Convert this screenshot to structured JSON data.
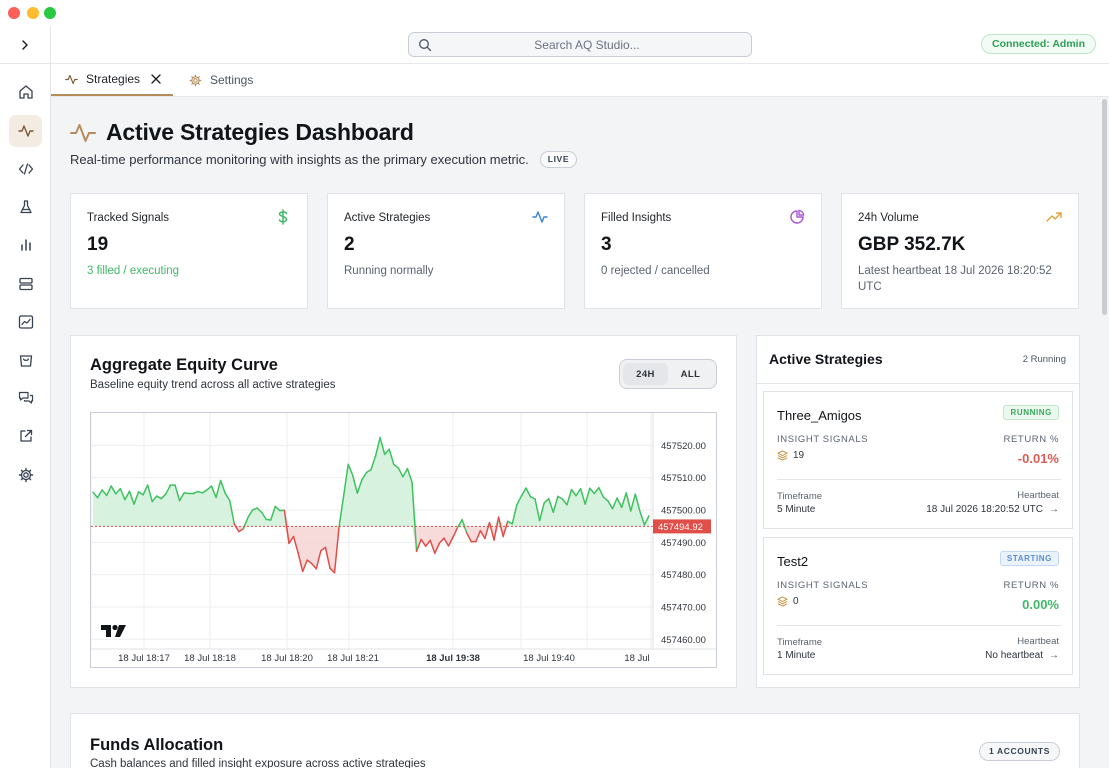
{
  "header": {
    "search_placeholder": "Search AQ Studio...",
    "connection_status": "Connected: Admin"
  },
  "sidebar": {
    "items": [
      {
        "icon": "home-icon"
      },
      {
        "icon": "activity-icon",
        "active": true
      },
      {
        "icon": "code-icon"
      },
      {
        "icon": "flask-icon"
      },
      {
        "icon": "bar-chart-icon"
      },
      {
        "icon": "server-icon"
      },
      {
        "icon": "line-chart-icon"
      },
      {
        "icon": "shopping-bag-icon"
      },
      {
        "icon": "messages-icon"
      },
      {
        "icon": "external-link-icon"
      },
      {
        "icon": "gear-icon"
      }
    ]
  },
  "tabs": [
    {
      "label": "Strategies",
      "active": true,
      "closable": true
    },
    {
      "label": "Settings",
      "active": false
    }
  ],
  "page": {
    "title": "Active Strategies Dashboard",
    "subtitle": "Real-time performance monitoring with insights as the primary execution metric.",
    "live_badge": "LIVE"
  },
  "stats": [
    {
      "label": "Tracked Signals",
      "value": "19",
      "sub": "3 filled / executing",
      "sub_color": "#3fb868",
      "icon": "dollar-icon"
    },
    {
      "label": "Active Strategies",
      "value": "2",
      "sub": "Running normally",
      "icon": "activity-icon"
    },
    {
      "label": "Filled Insights",
      "value": "3",
      "sub": "0 rejected / cancelled",
      "icon": "pie-chart-icon"
    },
    {
      "label": "24h Volume",
      "value": "GBP 352.7K",
      "sub": "Latest heartbeat 18 Jul 2026 18:20:52 UTC",
      "icon": "trending-up-icon"
    }
  ],
  "equity": {
    "title": "Aggregate Equity Curve",
    "description": "Baseline equity trend across all active strategies",
    "range_options": [
      "24H",
      "ALL"
    ],
    "selected_range": "24H"
  },
  "chart_data": {
    "type": "area",
    "baseline": 457494.92,
    "last_price_label": "457494.92",
    "ylim": [
      457457,
      457530
    ],
    "y_ticks": [
      "457520.00",
      "457510.00",
      "457500.00",
      "457490.00",
      "457480.00",
      "457470.00",
      "457460.00"
    ],
    "x_tick_labels": [
      "18 Jul 18:17",
      "18 Jul 18:18",
      "18 Jul 18:20",
      "18 Jul 18:21",
      "18 Jul 19:38",
      "18 Jul 19:40",
      "18 Jul"
    ],
    "x_tick_bold": "18 Jul 19:38",
    "colors": {
      "below": "#e04e4a",
      "above": "#3ec25f",
      "fill_below": "#f6d3d3",
      "fill_above": "#d3f1da"
    },
    "values": [
      457505.5,
      457503.8,
      457506.2,
      457504.5,
      457507.4,
      457505.0,
      457506.6,
      457503.2,
      457505.8,
      457501.8,
      457505.6,
      457504.7,
      457507.7,
      457502.6,
      457504.3,
      457503.5,
      457505.0,
      457507.7,
      457507.7,
      457502.9,
      457505.3,
      457505.1,
      457505.1,
      457505.7,
      457505.3,
      457506.2,
      457507.4,
      457503.9,
      457509.1,
      457505.2,
      457502.9,
      457495.7,
      457493.3,
      457494.2,
      457497.7,
      457500.0,
      457500.6,
      457499.3,
      457497.1,
      457496.9,
      457501.1,
      457499.8,
      457499.9,
      457489.7,
      457491.8,
      457486.8,
      457481.0,
      457484.5,
      457483.4,
      457481.8,
      457487.4,
      457488.4,
      457482.0,
      457480.6,
      457494.9,
      457504.4,
      457514.1,
      457510.7,
      457505.2,
      457509.3,
      457511.6,
      457512.5,
      457516.7,
      457522.4,
      457517.2,
      457518.8,
      457514.1,
      457513.0,
      457510.3,
      457512.8,
      457508.6,
      457487.2,
      457490.9,
      457488.8,
      457490.6,
      457486.6,
      457489.7,
      457491.3,
      457488.9,
      457491.6,
      457494.6,
      457497.0,
      457492.9,
      457490.2,
      457490.2,
      457493.6,
      457491.2,
      457496.1,
      457490.7,
      457497.8,
      457491.8,
      457496.5,
      457495.7,
      457501.6,
      457504.3,
      457506.8,
      457504.1,
      457503.4,
      457496.7,
      457502.2,
      457503.5,
      457499.3,
      457504.2,
      457503.4,
      457501.6,
      457506.3,
      457504.4,
      457506.6,
      457501.8,
      457506.7,
      457505.1,
      457506.9,
      457504.0,
      457502.8,
      457500.4,
      457503.7,
      457500.8,
      457505.3,
      457499.7,
      457504.9,
      457499.6,
      457495.4,
      457498.2
    ]
  },
  "strategies_panel": {
    "title": "Active Strategies",
    "count": "2 Running",
    "items": [
      {
        "name": "Three_Amigos",
        "status": "RUNNING",
        "signals_label": "INSIGHT SIGNALS",
        "signals": "19",
        "return_label": "RETURN %",
        "return": "-0.01%",
        "timeframe_label": "Timeframe",
        "timeframe": "5 Minute",
        "heartbeat_label": "Heartbeat",
        "heartbeat": "18 Jul 2026 18:20:52 UTC"
      },
      {
        "name": "Test2",
        "status": "STARTING",
        "signals_label": "INSIGHT SIGNALS",
        "signals": "0",
        "return_label": "RETURN %",
        "return": "0.00%",
        "timeframe_label": "Timeframe",
        "timeframe": "1 Minute",
        "heartbeat_label": "Heartbeat",
        "heartbeat": "No heartbeat"
      }
    ]
  },
  "funds": {
    "title": "Funds Allocation",
    "description": "Cash balances and filled insight exposure across active strategies",
    "accounts_badge": "1 ACCOUNTS"
  }
}
